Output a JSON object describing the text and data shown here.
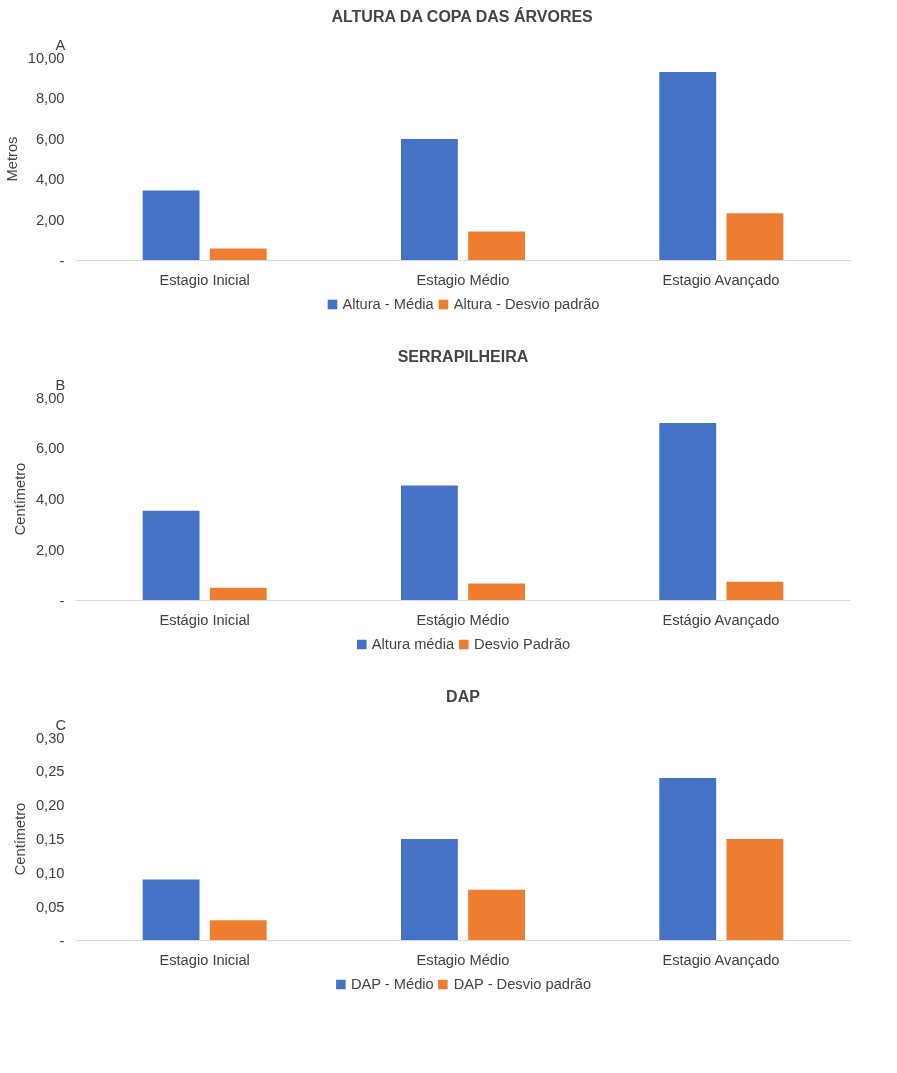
{
  "chart_data": [
    {
      "type": "bar",
      "title": "ALTURA DA COPA DAS ÁRVORES",
      "ylabel": "Metros",
      "annotations": [
        "A"
      ],
      "categories": [
        "Estagio Inicial",
        "Estagio Médio",
        "Estagio Avançado"
      ],
      "series": [
        {
          "name": "Altura - Média",
          "color": "#4472c4",
          "values": [
            3.45,
            5.99,
            9.29
          ]
        },
        {
          "name": "Altura - Desvio padrão",
          "color": "#ed7d31",
          "values": [
            0.59,
            1.43,
            2.33
          ]
        }
      ],
      "ylim": [
        0,
        10
      ],
      "yticks": [
        {
          "value": 0,
          "label": "-"
        },
        {
          "value": 2,
          "label": "2,00"
        },
        {
          "value": 4,
          "label": "4,00"
        },
        {
          "value": 6,
          "label": "6,00"
        },
        {
          "value": 8,
          "label": "8,00"
        },
        {
          "value": 10,
          "label": "10,00"
        }
      ],
      "grid": false,
      "legend": "bottom"
    },
    {
      "type": "bar",
      "title": "SERRAPILHEIRA",
      "ylabel": "Centímetro",
      "annotations": [
        "B"
      ],
      "categories": [
        "Estágio Inicial",
        "Estágio Médio",
        "Estágio Avançado"
      ],
      "series": [
        {
          "name": "Altura média",
          "color": "#4472c4",
          "values": [
            3.54,
            4.53,
            7.0
          ]
        },
        {
          "name": "Desvio Padrão",
          "color": "#ed7d31",
          "values": [
            0.5,
            0.67,
            0.74
          ]
        }
      ],
      "ylim": [
        0,
        8
      ],
      "yticks": [
        {
          "value": 0,
          "label": "-"
        },
        {
          "value": 2,
          "label": "2,00"
        },
        {
          "value": 4,
          "label": "4,00"
        },
        {
          "value": 6,
          "label": "6,00"
        },
        {
          "value": 8,
          "label": "8,00"
        }
      ],
      "grid": false,
      "legend": "bottom"
    },
    {
      "type": "bar",
      "title": "DAP",
      "ylabel": "Centímetro",
      "annotations": [
        "C"
      ],
      "categories": [
        "Estagio Inicial",
        "Estagio Médio",
        "Estagio Avançado"
      ],
      "series": [
        {
          "name": "DAP - Médio",
          "color": "#4472c4",
          "values": [
            0.09,
            0.15,
            0.24
          ]
        },
        {
          "name": "DAP - Desvio padrão",
          "color": "#ed7d31",
          "values": [
            0.03,
            0.075,
            0.15
          ]
        }
      ],
      "ylim": [
        0,
        0.3
      ],
      "yticks": [
        {
          "value": 0,
          "label": "-"
        },
        {
          "value": 0.05,
          "label": "0,05"
        },
        {
          "value": 0.1,
          "label": "0,10"
        },
        {
          "value": 0.15,
          "label": "0,15"
        },
        {
          "value": 0.2,
          "label": "0,20"
        },
        {
          "value": 0.25,
          "label": "0,25"
        },
        {
          "value": 0.3,
          "label": "0,30"
        }
      ],
      "grid": false,
      "legend": "bottom"
    }
  ]
}
